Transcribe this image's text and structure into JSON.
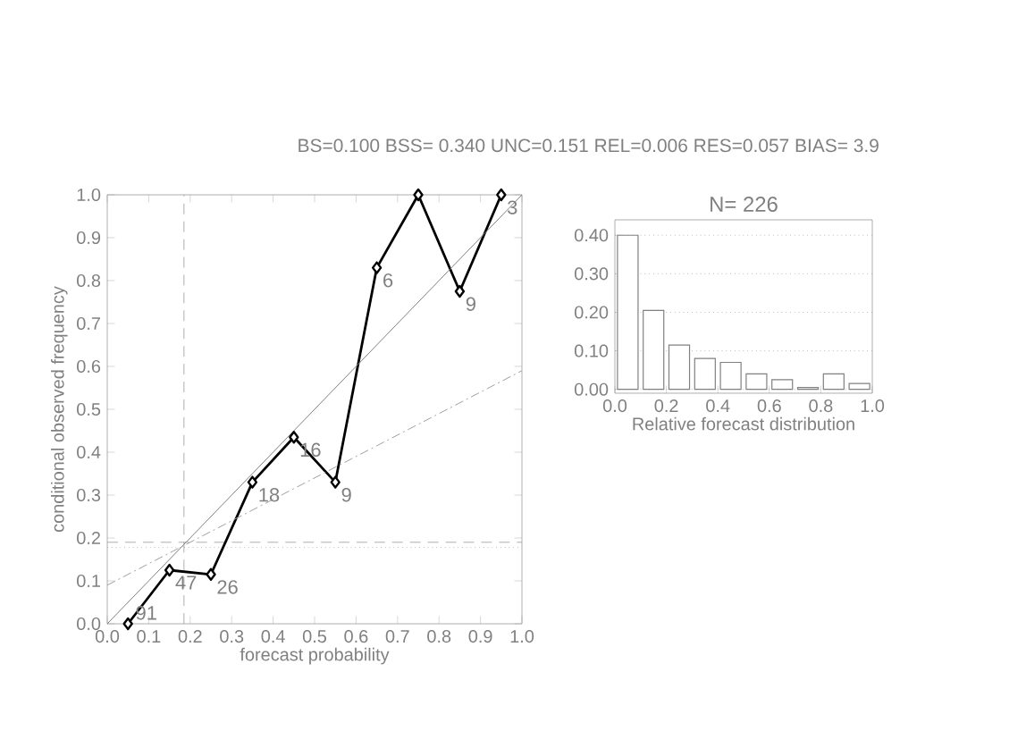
{
  "chart_data": [
    {
      "type": "line",
      "title": "BS=0.100 BSS= 0.340 UNC=0.151 REL=0.006 RES=0.057 BIAS= 3.9",
      "xlabel": "forecast probability",
      "ylabel": "conditional observed frequency",
      "xlim": [
        0,
        1
      ],
      "ylim": [
        0,
        1
      ],
      "xticks": [
        {
          "value": 0,
          "label": "0.0"
        },
        {
          "value": 0.1,
          "label": "0.1"
        },
        {
          "value": 0.2,
          "label": "0.2"
        },
        {
          "value": 0.3,
          "label": "0.3"
        },
        {
          "value": 0.4,
          "label": "0.4"
        },
        {
          "value": 0.5,
          "label": "0.5"
        },
        {
          "value": 0.6,
          "label": "0.6"
        },
        {
          "value": 0.7,
          "label": "0.7"
        },
        {
          "value": 0.8,
          "label": "0.8"
        },
        {
          "value": 0.9,
          "label": "0.9"
        },
        {
          "value": 1,
          "label": "1.0"
        }
      ],
      "yticks": [
        {
          "value": 0,
          "label": "0.0"
        },
        {
          "value": 0.1,
          "label": "0.1"
        },
        {
          "value": 0.2,
          "label": "0.2"
        },
        {
          "value": 0.3,
          "label": "0.3"
        },
        {
          "value": 0.4,
          "label": "0.4"
        },
        {
          "value": 0.5,
          "label": "0.5"
        },
        {
          "value": 0.6,
          "label": "0.6"
        },
        {
          "value": 0.7,
          "label": "0.7"
        },
        {
          "value": 0.8,
          "label": "0.8"
        },
        {
          "value": 0.9,
          "label": "0.9"
        },
        {
          "value": 1,
          "label": "1.0"
        }
      ],
      "series": [
        {
          "color": "#000000",
          "marker": "diamond",
          "line_style": "solid",
          "x": [
            0.05,
            0.15,
            0.25,
            0.35,
            0.45,
            0.55,
            0.65,
            0.75,
            0.85,
            0.95
          ],
          "values": [
            0.0,
            0.125,
            0.115,
            0.33,
            0.435,
            0.33,
            0.83,
            1.0,
            0.775,
            1.0
          ]
        },
        {
          "color": "#808080",
          "marker": "none",
          "line_style": "solid",
          "x": [
            0,
            1
          ],
          "values": [
            0,
            1
          ]
        },
        {
          "color": "#a0a0a0",
          "marker": "none",
          "line_style": "dashdot",
          "x": [
            0,
            1
          ],
          "values": [
            0.09,
            0.59
          ]
        }
      ],
      "ref_lines": [
        {
          "axis": "x",
          "value": 0.185,
          "line_style": "dashed",
          "color": "#999999"
        },
        {
          "axis": "y",
          "value": 0.19,
          "line_style": "dashed",
          "color": "#999999"
        },
        {
          "axis": "y",
          "value": 0.178,
          "line_style": "dotted",
          "color": "#999999"
        }
      ],
      "annotations": [
        {
          "text": "91",
          "x": 0.05,
          "y": 0.0
        },
        {
          "text": "47",
          "x": 0.15,
          "y": 0.125
        },
        {
          "text": "26",
          "x": 0.25,
          "y": 0.115
        },
        {
          "text": "18",
          "x": 0.35,
          "y": 0.33
        },
        {
          "text": "16",
          "x": 0.45,
          "y": 0.435
        },
        {
          "text": "9",
          "x": 0.55,
          "y": 0.33
        },
        {
          "text": "6",
          "x": 0.65,
          "y": 0.83
        },
        {
          "text": "9",
          "x": 0.85,
          "y": 0.775
        },
        {
          "text": "3",
          "x": 0.95,
          "y": 1.0
        }
      ],
      "grid": false
    },
    {
      "type": "histogram",
      "title": "N= 226",
      "xlabel": "Relative forecast distribution",
      "bins": [
        0,
        0.1,
        0.2,
        0.3,
        0.4,
        0.5,
        0.6,
        0.7,
        0.8,
        0.9,
        1.0
      ],
      "values": [
        0.4,
        0.205,
        0.115,
        0.08,
        0.07,
        0.04,
        0.025,
        0.005,
        0.04,
        0.015
      ],
      "color": "#808080",
      "xlim": [
        0,
        1
      ],
      "ylim": [
        -0.01,
        0.44
      ],
      "xticks": [
        {
          "value": 0,
          "label": "0.0"
        },
        {
          "value": 0.2,
          "label": "0.2"
        },
        {
          "value": 0.4,
          "label": "0.4"
        },
        {
          "value": 0.6,
          "label": "0.6"
        },
        {
          "value": 0.8,
          "label": "0.8"
        },
        {
          "value": 1,
          "label": "1.0"
        }
      ],
      "yticks": [
        {
          "value": 0,
          "label": "0.00"
        },
        {
          "value": 0.1,
          "label": "0.10"
        },
        {
          "value": 0.2,
          "label": "0.20"
        },
        {
          "value": 0.3,
          "label": "0.30"
        },
        {
          "value": 0.4,
          "label": "0.40"
        }
      ],
      "grid": "y"
    }
  ]
}
